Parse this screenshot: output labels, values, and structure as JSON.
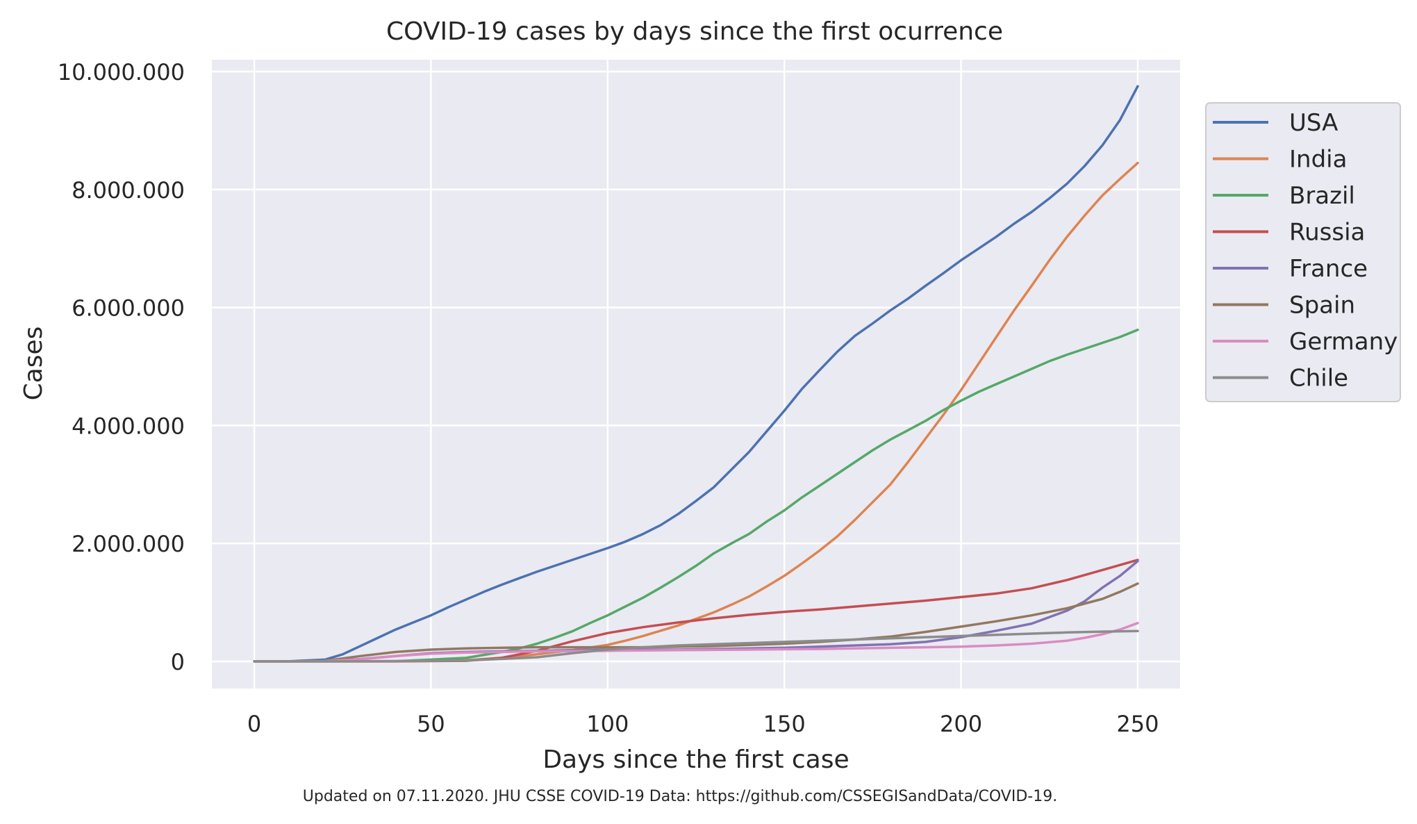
{
  "chart_data": {
    "type": "line",
    "title": "COVID-19 cases by days since the first ocurrence",
    "xlabel": "Days since the first case",
    "ylabel": "Cases",
    "footnote": "Updated on 07.11.2020. JHU CSSE COVID-19 Data: https://github.com/CSSEGISandData/COVID-19.",
    "xlim": [
      -12,
      262
    ],
    "ylim": [
      -460000,
      10200000
    ],
    "xticks": [
      0,
      50,
      100,
      150,
      200,
      250
    ],
    "xtick_labels": [
      "0",
      "50",
      "100",
      "150",
      "200",
      "250"
    ],
    "yticks": [
      0,
      2000000,
      4000000,
      6000000,
      8000000,
      10000000
    ],
    "ytick_labels": [
      "0",
      "2.000.000",
      "4.000.000",
      "6.000.000",
      "8.000.000",
      "10.000.000"
    ],
    "grid": true,
    "legend_position": "outside-right",
    "background": "#eaeaf2",
    "series": [
      {
        "name": "USA",
        "color": "#4c72b0",
        "x": [
          0,
          10,
          20,
          25,
          30,
          35,
          40,
          45,
          50,
          55,
          60,
          65,
          70,
          75,
          80,
          85,
          90,
          95,
          100,
          105,
          110,
          115,
          120,
          125,
          130,
          135,
          140,
          145,
          150,
          155,
          160,
          165,
          170,
          175,
          180,
          185,
          190,
          195,
          200,
          205,
          210,
          215,
          220,
          225,
          230,
          235,
          240,
          245,
          250
        ],
        "y": [
          0,
          2000,
          30000,
          120000,
          260000,
          400000,
          540000,
          660000,
          780000,
          920000,
          1050000,
          1180000,
          1300000,
          1410000,
          1520000,
          1620000,
          1720000,
          1820000,
          1920000,
          2030000,
          2160000,
          2310000,
          2500000,
          2720000,
          2950000,
          3250000,
          3550000,
          3900000,
          4250000,
          4620000,
          4940000,
          5250000,
          5520000,
          5730000,
          5950000,
          6150000,
          6370000,
          6580000,
          6800000,
          7000000,
          7200000,
          7420000,
          7620000,
          7850000,
          8100000,
          8400000,
          8750000,
          9180000,
          9750000
        ]
      },
      {
        "name": "India",
        "color": "#dd8452",
        "x": [
          0,
          20,
          40,
          60,
          70,
          80,
          90,
          100,
          105,
          110,
          115,
          120,
          125,
          130,
          135,
          140,
          145,
          150,
          155,
          160,
          165,
          170,
          175,
          180,
          185,
          190,
          195,
          200,
          205,
          210,
          215,
          220,
          225,
          230,
          235,
          240,
          245,
          250
        ],
        "y": [
          0,
          200,
          2000,
          20000,
          60000,
          120000,
          190000,
          280000,
          350000,
          430000,
          520000,
          610000,
          720000,
          830000,
          960000,
          1100000,
          1270000,
          1450000,
          1660000,
          1880000,
          2120000,
          2400000,
          2700000,
          3000000,
          3380000,
          3780000,
          4180000,
          4600000,
          5050000,
          5500000,
          5950000,
          6370000,
          6800000,
          7200000,
          7560000,
          7900000,
          8180000,
          8450000
        ]
      },
      {
        "name": "Brazil",
        "color": "#55a868",
        "x": [
          0,
          20,
          40,
          60,
          70,
          75,
          80,
          85,
          90,
          95,
          100,
          105,
          110,
          115,
          120,
          125,
          130,
          135,
          140,
          145,
          150,
          155,
          160,
          165,
          170,
          175,
          180,
          185,
          190,
          195,
          200,
          205,
          210,
          215,
          220,
          225,
          230,
          235,
          240,
          245,
          250
        ],
        "y": [
          0,
          100,
          2000,
          60000,
          160000,
          220000,
          300000,
          400000,
          510000,
          650000,
          780000,
          930000,
          1080000,
          1250000,
          1430000,
          1620000,
          1830000,
          2000000,
          2160000,
          2370000,
          2560000,
          2780000,
          2980000,
          3180000,
          3380000,
          3580000,
          3760000,
          3920000,
          4080000,
          4260000,
          4420000,
          4570000,
          4700000,
          4830000,
          4960000,
          5090000,
          5200000,
          5300000,
          5400000,
          5500000,
          5620000
        ]
      },
      {
        "name": "Russia",
        "color": "#c44e52",
        "x": [
          0,
          20,
          40,
          60,
          70,
          80,
          90,
          100,
          110,
          120,
          130,
          140,
          150,
          160,
          170,
          180,
          190,
          200,
          210,
          220,
          230,
          240,
          250
        ],
        "y": [
          0,
          200,
          1000,
          10000,
          60000,
          180000,
          340000,
          480000,
          580000,
          660000,
          730000,
          790000,
          840000,
          880000,
          930000,
          980000,
          1030000,
          1090000,
          1150000,
          1240000,
          1380000,
          1550000,
          1720000
        ]
      },
      {
        "name": "France",
        "color": "#8172b3",
        "x": [
          0,
          10,
          20,
          30,
          40,
          50,
          60,
          70,
          80,
          90,
          100,
          110,
          120,
          130,
          140,
          150,
          160,
          170,
          180,
          190,
          200,
          210,
          220,
          230,
          235,
          240,
          245,
          250
        ],
        "y": [
          0,
          300,
          5000,
          40000,
          90000,
          140000,
          160000,
          170000,
          180000,
          190000,
          200000,
          200000,
          200000,
          210000,
          220000,
          230000,
          250000,
          270000,
          290000,
          330000,
          410000,
          520000,
          640000,
          860000,
          1020000,
          1250000,
          1450000,
          1700000
        ]
      },
      {
        "name": "Spain",
        "color": "#937860",
        "x": [
          0,
          10,
          20,
          30,
          40,
          50,
          60,
          70,
          80,
          90,
          100,
          110,
          120,
          130,
          140,
          150,
          160,
          170,
          180,
          190,
          200,
          210,
          220,
          230,
          240,
          245,
          250
        ],
        "y": [
          0,
          200,
          10000,
          90000,
          160000,
          200000,
          220000,
          230000,
          240000,
          240000,
          240000,
          240000,
          250000,
          260000,
          280000,
          300000,
          330000,
          370000,
          420000,
          500000,
          590000,
          680000,
          780000,
          900000,
          1060000,
          1180000,
          1320000
        ]
      },
      {
        "name": "Germany",
        "color": "#da8bc3",
        "x": [
          0,
          10,
          20,
          30,
          40,
          50,
          60,
          70,
          80,
          90,
          100,
          110,
          120,
          130,
          140,
          150,
          160,
          170,
          180,
          190,
          200,
          210,
          220,
          230,
          235,
          240,
          245,
          250
        ],
        "y": [
          0,
          500,
          5000,
          35000,
          90000,
          130000,
          150000,
          160000,
          170000,
          175000,
          180000,
          185000,
          190000,
          195000,
          200000,
          205000,
          210000,
          220000,
          230000,
          240000,
          250000,
          270000,
          300000,
          350000,
          400000,
          460000,
          540000,
          650000
        ]
      },
      {
        "name": "Chile",
        "color": "#8c8c8c",
        "x": [
          0,
          20,
          40,
          60,
          80,
          90,
          100,
          110,
          120,
          130,
          140,
          150,
          160,
          170,
          180,
          190,
          200,
          210,
          220,
          230,
          240,
          250
        ],
        "y": [
          0,
          500,
          5000,
          15000,
          70000,
          140000,
          200000,
          240000,
          270000,
          290000,
          310000,
          330000,
          350000,
          370000,
          390000,
          410000,
          430000,
          450000,
          470000,
          490000,
          505000,
          515000
        ]
      }
    ]
  }
}
